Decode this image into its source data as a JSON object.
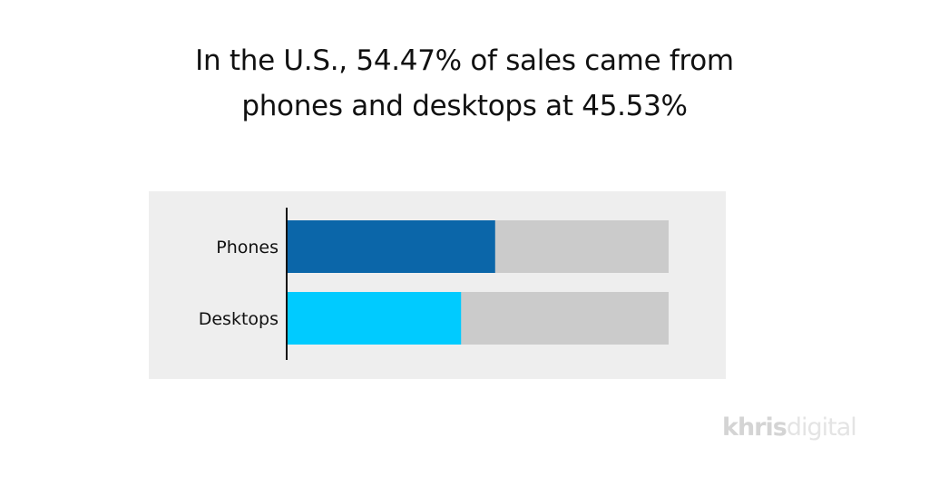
{
  "chart_data": {
    "type": "bar",
    "orientation": "horizontal",
    "title_lines": [
      "In the U.S., 54.47% of sales came from",
      "phones and desktops at 45.53%"
    ],
    "categories": [
      "Phones",
      "Desktops"
    ],
    "values": [
      54.47,
      45.53
    ],
    "unit": "%",
    "xlim": [
      0,
      100
    ],
    "bar_colors": [
      "#0b66a9",
      "#00cbff"
    ],
    "track_color": "#cbcbcb",
    "background_color": "#eeeeee",
    "grid": false,
    "legend": "none"
  },
  "watermark": {
    "text": "khrisdigital",
    "part1": "khris",
    "part2": "digital"
  }
}
